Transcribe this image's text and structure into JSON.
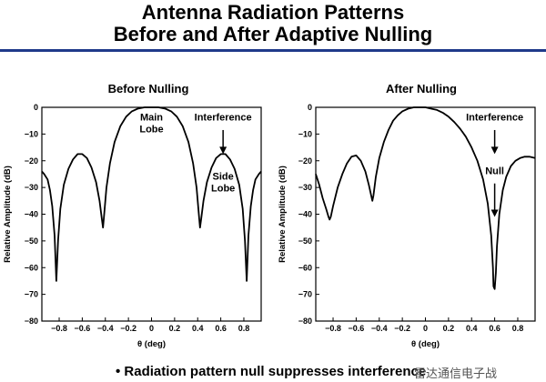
{
  "header": {
    "title_line1": "Antenna Radiation Patterns",
    "title_line2": "Before and After Adaptive Nulling"
  },
  "footer": {
    "text": "• Radiation pattern null suppresses interference",
    "watermark": "雷达通信电子战"
  },
  "colors": {
    "rule": "#1f3a8a",
    "curve": "#000000"
  },
  "chart_data": [
    {
      "type": "line",
      "title": "Before Nulling",
      "xlabel": "θ (deg)",
      "ylabel": "Relative Amplitude (dB)",
      "xlim": [
        -0.95,
        0.95
      ],
      "ylim": [
        -80,
        0
      ],
      "x_ticks": [
        -0.8,
        -0.6,
        -0.4,
        -0.2,
        0,
        0.2,
        0.4,
        0.6,
        0.8
      ],
      "x_tick_labels": [
        "−0.8",
        "−0.6",
        "−0.4",
        "−0.2",
        "0",
        "0.2",
        "0.4",
        "0.6",
        "0.8"
      ],
      "y_ticks": [
        0,
        -10,
        -20,
        -30,
        -40,
        -50,
        -60,
        -70,
        -80
      ],
      "y_tick_labels": [
        "0",
        "−10",
        "−20",
        "−30",
        "−40",
        "−50",
        "−60",
        "−70",
        "−80"
      ],
      "series": [
        {
          "x": [
            -0.95,
            -0.93,
            -0.9,
            -0.88,
            -0.86,
            -0.84,
            -0.825,
            -0.81,
            -0.79,
            -0.76,
            -0.72,
            -0.68,
            -0.64,
            -0.6,
            -0.56,
            -0.52,
            -0.48,
            -0.45,
            -0.43,
            -0.42,
            -0.41,
            -0.39,
            -0.36,
            -0.32,
            -0.27,
            -0.22,
            -0.17,
            -0.12,
            -0.06,
            0,
            0.06,
            0.12,
            0.17,
            0.22,
            0.27,
            0.32,
            0.36,
            0.39,
            0.41,
            0.42,
            0.43,
            0.45,
            0.48,
            0.52,
            0.56,
            0.6,
            0.64,
            0.68,
            0.72,
            0.76,
            0.79,
            0.81,
            0.825,
            0.84,
            0.86,
            0.88,
            0.9,
            0.93,
            0.95
          ],
          "y": [
            -24,
            -25,
            -27,
            -31,
            -37,
            -48,
            -65,
            -50,
            -38,
            -29,
            -23,
            -19.5,
            -17.5,
            -17.5,
            -19,
            -22.5,
            -28,
            -35,
            -42,
            -45,
            -40,
            -30,
            -21,
            -13,
            -7,
            -3.5,
            -1.5,
            -0.5,
            0,
            0,
            0,
            -0.5,
            -1.5,
            -3.5,
            -7,
            -13,
            -21,
            -30,
            -40,
            -45,
            -42,
            -35,
            -28,
            -22.5,
            -19,
            -17.5,
            -17.5,
            -19.5,
            -23,
            -29,
            -38,
            -50,
            -65,
            -48,
            -37,
            -31,
            -27,
            -25,
            -24
          ]
        }
      ],
      "annotations": [
        {
          "lines": [
            "Main",
            "Lobe"
          ],
          "x": 0.0,
          "y": -5
        },
        {
          "lines": [
            "Interference"
          ],
          "x": 0.62,
          "y": -5
        },
        {
          "lines": [
            "Side",
            "Lobe"
          ],
          "x": 0.62,
          "y": -27
        }
      ],
      "arrows": [
        {
          "x": 0.62,
          "y_from": -8.5,
          "y_to": -17.5
        }
      ]
    },
    {
      "type": "line",
      "title": "After Nulling",
      "xlabel": "θ (deg)",
      "ylabel": "Relative Amplitude (dB)",
      "xlim": [
        -0.95,
        0.95
      ],
      "ylim": [
        -80,
        0
      ],
      "x_ticks": [
        -0.8,
        -0.6,
        -0.4,
        -0.2,
        0,
        0.2,
        0.4,
        0.6,
        0.8
      ],
      "x_tick_labels": [
        "−0.8",
        "−0.6",
        "−0.4",
        "−0.2",
        "0",
        "0.2",
        "0.4",
        "0.6",
        "0.8"
      ],
      "y_ticks": [
        0,
        -10,
        -20,
        -30,
        -40,
        -50,
        -60,
        -70,
        -80
      ],
      "y_tick_labels": [
        "0",
        "−10",
        "−20",
        "−30",
        "−40",
        "−50",
        "−60",
        "−70",
        "−80"
      ],
      "series": [
        {
          "x": [
            -0.95,
            -0.92,
            -0.89,
            -0.86,
            -0.84,
            -0.83,
            -0.82,
            -0.8,
            -0.76,
            -0.72,
            -0.68,
            -0.64,
            -0.6,
            -0.56,
            -0.52,
            -0.49,
            -0.47,
            -0.46,
            -0.45,
            -0.43,
            -0.4,
            -0.36,
            -0.32,
            -0.28,
            -0.24,
            -0.2,
            -0.15,
            -0.1,
            -0.05,
            0,
            0.05,
            0.1,
            0.15,
            0.2,
            0.25,
            0.3,
            0.35,
            0.4,
            0.45,
            0.5,
            0.54,
            0.57,
            0.585,
            0.59,
            0.6,
            0.61,
            0.62,
            0.64,
            0.67,
            0.7,
            0.74,
            0.78,
            0.82,
            0.86,
            0.9,
            0.95
          ],
          "y": [
            -25,
            -29,
            -34,
            -38,
            -41,
            -42,
            -41,
            -37,
            -30,
            -25,
            -21,
            -18.5,
            -18,
            -20,
            -24,
            -29,
            -33,
            -35,
            -33,
            -26,
            -19,
            -13,
            -8.5,
            -5,
            -3,
            -1.5,
            -0.5,
            0,
            0,
            0,
            -0.5,
            -1,
            -2,
            -3.5,
            -5.5,
            -8,
            -11,
            -15,
            -20,
            -27,
            -36,
            -48,
            -60,
            -67,
            -68,
            -62,
            -52,
            -40,
            -31,
            -26,
            -22,
            -20,
            -19,
            -18.5,
            -18.5,
            -19
          ]
        }
      ],
      "annotations": [
        {
          "lines": [
            "Interference"
          ],
          "x": 0.6,
          "y": -5
        },
        {
          "lines": [
            "Null"
          ],
          "x": 0.6,
          "y": -25
        }
      ],
      "arrows": [
        {
          "x": 0.6,
          "y_from": -8.5,
          "y_to": -17.5
        },
        {
          "x": 0.6,
          "y_from": -28.5,
          "y_to": -41
        }
      ]
    }
  ]
}
